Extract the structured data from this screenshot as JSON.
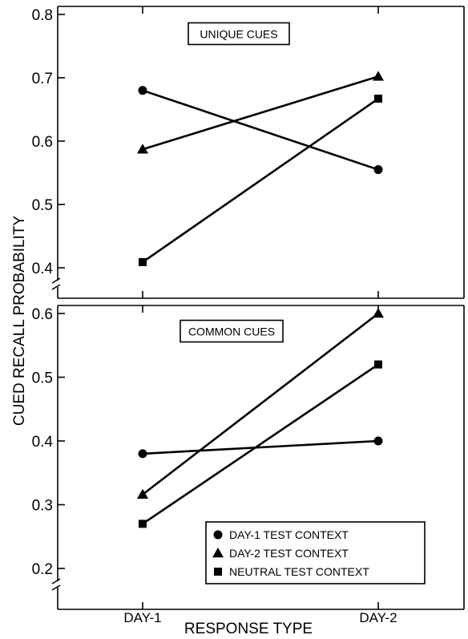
{
  "chart_data": {
    "type": "line",
    "ylabel": "CUED RECALL PROBABILITY",
    "xlabel": "RESPONSE TYPE",
    "categories": [
      "DAY-1",
      "DAY-2"
    ],
    "legend": {
      "placement": "bottom-right of lower panel",
      "entries": [
        {
          "marker": "circle",
          "label": "DAY-1 TEST CONTEXT"
        },
        {
          "marker": "triangle",
          "label": "DAY-2 TEST CONTEXT"
        },
        {
          "marker": "square",
          "label": "NEUTRAL TEST CONTEXT"
        }
      ]
    },
    "panels": [
      {
        "title": "UNIQUE CUES",
        "ylim": [
          0.4,
          0.8
        ],
        "yticks": [
          0.4,
          0.5,
          0.6,
          0.7,
          0.8
        ],
        "ytick_labels": [
          "0.4",
          "0.5",
          "0.6",
          "0.7",
          "0.8"
        ],
        "axis_break": true,
        "series": [
          {
            "marker": "circle",
            "values": [
              0.68,
              0.555
            ]
          },
          {
            "marker": "triangle",
            "values": [
              0.587,
              0.702
            ]
          },
          {
            "marker": "square",
            "values": [
              0.409,
              0.667
            ]
          }
        ]
      },
      {
        "title": "COMMON CUES",
        "ylim": [
          0.2,
          0.6
        ],
        "yticks": [
          0.2,
          0.3,
          0.4,
          0.5,
          0.6
        ],
        "ytick_labels": [
          "0.2",
          "0.3",
          "0.4",
          "0.5",
          "0.6"
        ],
        "axis_break": true,
        "series": [
          {
            "marker": "circle",
            "values": [
              0.38,
              0.4
            ]
          },
          {
            "marker": "triangle",
            "values": [
              0.316,
              0.6
            ]
          },
          {
            "marker": "square",
            "values": [
              0.27,
              0.52
            ]
          }
        ]
      }
    ]
  }
}
